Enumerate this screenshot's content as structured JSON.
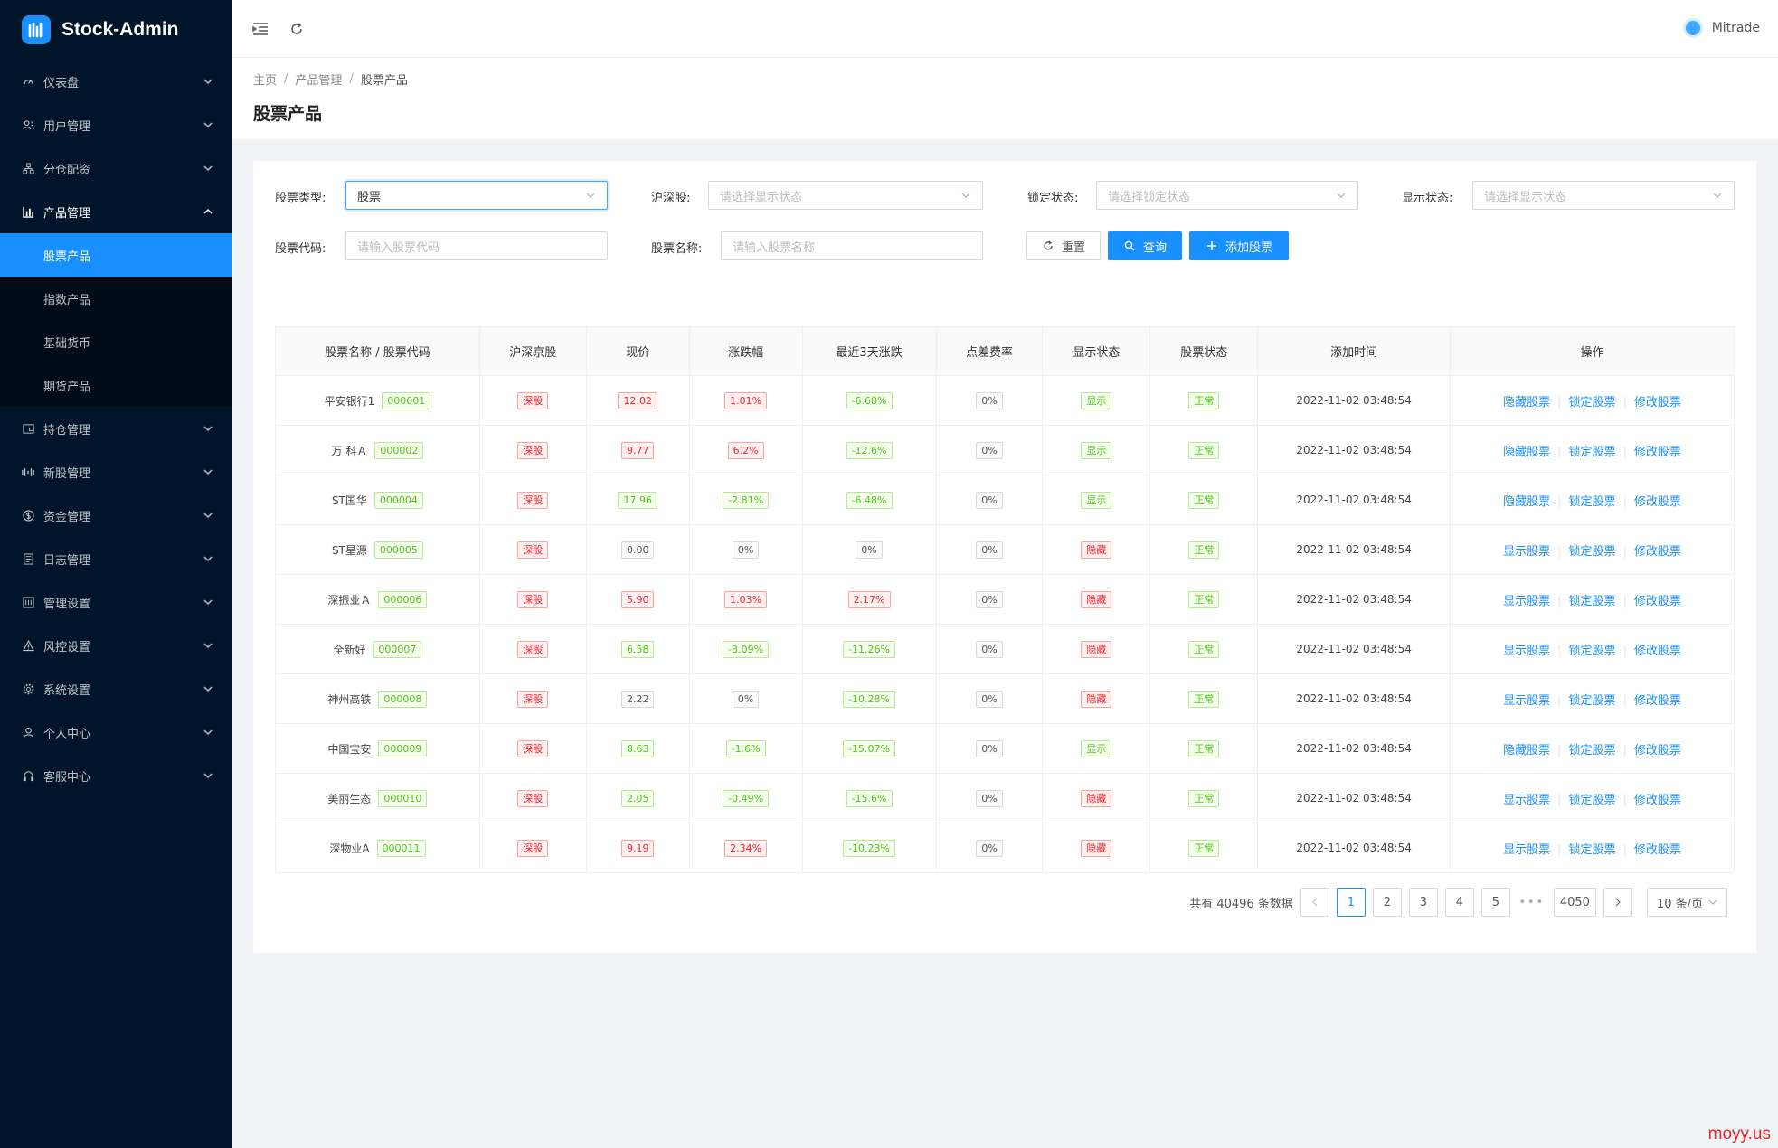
{
  "app": {
    "title": "Stock-Admin"
  },
  "sidebar": {
    "items": [
      {
        "label": "仪表盘",
        "icon": "dashboard-icon"
      },
      {
        "label": "用户管理",
        "icon": "user-group-icon"
      },
      {
        "label": "分仓配资",
        "icon": "cluster-icon"
      },
      {
        "label": "产品管理",
        "icon": "bar-chart-icon"
      }
    ],
    "product_sub": [
      {
        "label": "股票产品"
      },
      {
        "label": "指数产品"
      },
      {
        "label": "基础货币"
      },
      {
        "label": "期货产品"
      }
    ],
    "items_after": [
      {
        "label": "持仓管理",
        "icon": "wallet-icon"
      },
      {
        "label": "新股管理",
        "icon": "new-stock-icon"
      },
      {
        "label": "资金管理",
        "icon": "money-icon"
      },
      {
        "label": "日志管理",
        "icon": "log-icon"
      },
      {
        "label": "管理设置",
        "icon": "admin-settings-icon"
      },
      {
        "label": "风控设置",
        "icon": "warning-icon"
      },
      {
        "label": "系统设置",
        "icon": "gear-icon"
      },
      {
        "label": "个人中心",
        "icon": "person-icon"
      },
      {
        "label": "客服中心",
        "icon": "headset-icon"
      }
    ]
  },
  "header": {
    "user": "Mitrade"
  },
  "breadcrumb": {
    "home": "主页",
    "level1": "产品管理",
    "current": "股票产品"
  },
  "page": {
    "title": "股票产品"
  },
  "filters": {
    "stock_type_label": "股票类型:",
    "stock_type_value": "股票",
    "market_label": "沪深股:",
    "market_placeholder": "请选择显示状态",
    "lock_label": "锁定状态:",
    "lock_placeholder": "请选择锁定状态",
    "show_label": "显示状态:",
    "show_placeholder": "请选择显示状态",
    "code_label": "股票代码:",
    "code_placeholder": "请输入股票代码",
    "name_label": "股票名称:",
    "name_placeholder": "请输入股票名称",
    "reset": "重置",
    "query": "查询",
    "add": "添加股票"
  },
  "table": {
    "columns": [
      "股票名称 / 股票代码",
      "沪深京股",
      "现价",
      "涨跌幅",
      "最近3天涨跌",
      "点差费率",
      "显示状态",
      "股票状态",
      "添加时间",
      "操作"
    ],
    "rows": [
      {
        "name": "平安银行1",
        "code": "000001",
        "market": "深股",
        "price": "12.02",
        "price_dir": "up",
        "change": "1.01%",
        "change_dir": "up",
        "change3": "-6.68%",
        "change3_dir": "down",
        "spread": "0%",
        "show": "显示",
        "status": "正常",
        "time": "2022-11-02 03:48:54",
        "op1": "隐藏股票",
        "op2": "锁定股票",
        "op3": "修改股票"
      },
      {
        "name": "万 科Ａ",
        "code": "000002",
        "market": "深股",
        "price": "9.77",
        "price_dir": "up",
        "change": "6.2%",
        "change_dir": "up",
        "change3": "-12.6%",
        "change3_dir": "down",
        "spread": "0%",
        "show": "显示",
        "status": "正常",
        "time": "2022-11-02 03:48:54",
        "op1": "隐藏股票",
        "op2": "锁定股票",
        "op3": "修改股票"
      },
      {
        "name": "ST国华",
        "code": "000004",
        "market": "深股",
        "price": "17.96",
        "price_dir": "down",
        "change": "-2.81%",
        "change_dir": "down",
        "change3": "-6.48%",
        "change3_dir": "down",
        "spread": "0%",
        "show": "显示",
        "status": "正常",
        "time": "2022-11-02 03:48:54",
        "op1": "隐藏股票",
        "op2": "锁定股票",
        "op3": "修改股票"
      },
      {
        "name": "ST星源",
        "code": "000005",
        "market": "深股",
        "price": "0.00",
        "price_dir": "flat",
        "change": "0%",
        "change_dir": "flat",
        "change3": "0%",
        "change3_dir": "flat",
        "spread": "0%",
        "show": "隐藏",
        "status": "正常",
        "time": "2022-11-02 03:48:54",
        "op1": "显示股票",
        "op2": "锁定股票",
        "op3": "修改股票"
      },
      {
        "name": "深振业Ａ",
        "code": "000006",
        "market": "深股",
        "price": "5.90",
        "price_dir": "up",
        "change": "1.03%",
        "change_dir": "up",
        "change3": "2.17%",
        "change3_dir": "up",
        "spread": "0%",
        "show": "隐藏",
        "status": "正常",
        "time": "2022-11-02 03:48:54",
        "op1": "显示股票",
        "op2": "锁定股票",
        "op3": "修改股票"
      },
      {
        "name": "全新好",
        "code": "000007",
        "market": "深股",
        "price": "6.58",
        "price_dir": "down",
        "change": "-3.09%",
        "change_dir": "down",
        "change3": "-11.26%",
        "change3_dir": "down",
        "spread": "0%",
        "show": "隐藏",
        "status": "正常",
        "time": "2022-11-02 03:48:54",
        "op1": "显示股票",
        "op2": "锁定股票",
        "op3": "修改股票"
      },
      {
        "name": "神州高铁",
        "code": "000008",
        "market": "深股",
        "price": "2.22",
        "price_dir": "flat",
        "change": "0%",
        "change_dir": "flat",
        "change3": "-10.28%",
        "change3_dir": "down",
        "spread": "0%",
        "show": "隐藏",
        "status": "正常",
        "time": "2022-11-02 03:48:54",
        "op1": "显示股票",
        "op2": "锁定股票",
        "op3": "修改股票"
      },
      {
        "name": "中国宝安",
        "code": "000009",
        "market": "深股",
        "price": "8.63",
        "price_dir": "down",
        "change": "-1.6%",
        "change_dir": "down",
        "change3": "-15.07%",
        "change3_dir": "down",
        "spread": "0%",
        "show": "显示",
        "status": "正常",
        "time": "2022-11-02 03:48:54",
        "op1": "隐藏股票",
        "op2": "锁定股票",
        "op3": "修改股票"
      },
      {
        "name": "美丽生态",
        "code": "000010",
        "market": "深股",
        "price": "2.05",
        "price_dir": "down",
        "change": "-0.49%",
        "change_dir": "down",
        "change3": "-15.6%",
        "change3_dir": "down",
        "spread": "0%",
        "show": "隐藏",
        "status": "正常",
        "time": "2022-11-02 03:48:54",
        "op1": "显示股票",
        "op2": "锁定股票",
        "op3": "修改股票"
      },
      {
        "name": "深物业A",
        "code": "000011",
        "market": "深股",
        "price": "9.19",
        "price_dir": "up",
        "change": "2.34%",
        "change_dir": "up",
        "change3": "-10.23%",
        "change3_dir": "down",
        "spread": "0%",
        "show": "隐藏",
        "status": "正常",
        "time": "2022-11-02 03:48:54",
        "op1": "显示股票",
        "op2": "锁定股票",
        "op3": "修改股票"
      }
    ]
  },
  "pagination": {
    "total_text": "共有 40496 条数据",
    "pages": [
      "1",
      "2",
      "3",
      "4",
      "5"
    ],
    "ellipsis": "•••",
    "last": "4050",
    "current": "1",
    "page_size": "10 条/页"
  },
  "watermark": "moyy.us",
  "colors": {
    "accent": "#1890ff",
    "sidebar_bg": "#001529",
    "up": "#f5222d",
    "down": "#52c41a"
  }
}
